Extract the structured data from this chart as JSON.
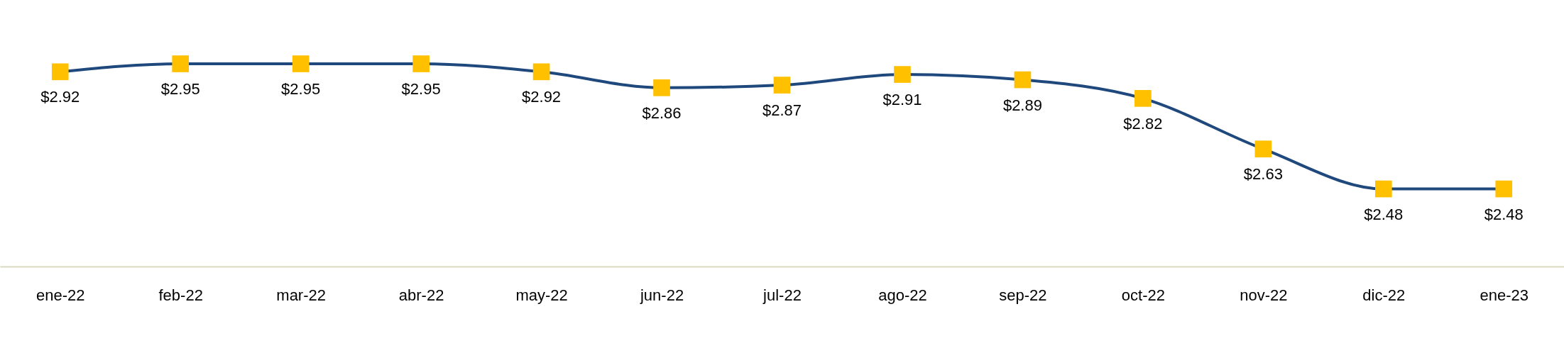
{
  "chart_data": {
    "type": "line",
    "categories": [
      "ene-22",
      "feb-22",
      "mar-22",
      "abr-22",
      "may-22",
      "jun-22",
      "jul-22",
      "ago-22",
      "sep-22",
      "oct-22",
      "nov-22",
      "dic-22",
      "ene-23"
    ],
    "series": [
      {
        "color": "#1f497d",
        "values": [
          2.92,
          2.95,
          2.95,
          2.95,
          2.92,
          2.86,
          2.87,
          2.91,
          2.89,
          2.82,
          2.63,
          2.48,
          2.48
        ],
        "value_labels": [
          "$2.92",
          "$2.95",
          "$2.95",
          "$2.95",
          "$2.92",
          "$2.86",
          "$2.87",
          "$2.91",
          "$2.89",
          "$2.82",
          "$2.63",
          "$2.48",
          "$2.48"
        ]
      }
    ],
    "marker": "square",
    "grid": false,
    "tick_labels": "x"
  }
}
